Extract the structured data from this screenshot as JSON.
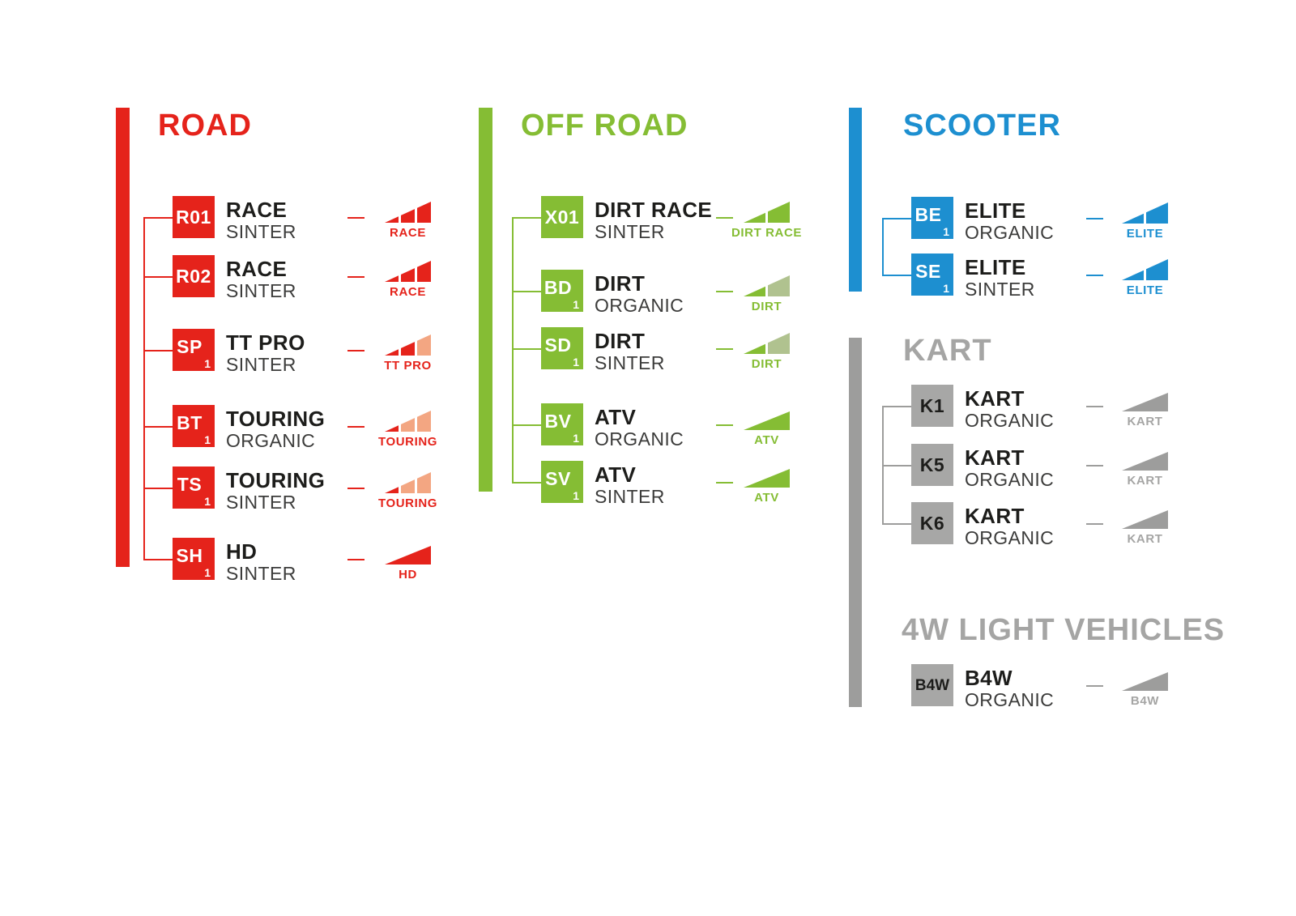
{
  "page": {
    "background": "#ffffff"
  },
  "sections": [
    {
      "id": "road",
      "title": "ROAD",
      "color": "#e5231b",
      "light_color": "#f3a682",
      "badge_text": "#ffffff",
      "items": [
        {
          "code": "R01",
          "sub": "",
          "name": "RACE",
          "material": "SINTER",
          "icon_label": "RACE",
          "segments": [
            "full",
            "full",
            "full"
          ]
        },
        {
          "code": "R02",
          "sub": "",
          "name": "RACE",
          "material": "SINTER",
          "icon_label": "RACE",
          "segments": [
            "full",
            "full",
            "full"
          ]
        },
        {
          "code": "SP",
          "sub": "1",
          "name": "TT PRO",
          "material": "SINTER",
          "icon_label": "TT PRO",
          "segments": [
            "full",
            "full",
            "light"
          ]
        },
        {
          "code": "BT",
          "sub": "1",
          "name": "TOURING",
          "material": "ORGANIC",
          "icon_label": "TOURING",
          "segments": [
            "full",
            "light",
            "light"
          ]
        },
        {
          "code": "TS",
          "sub": "1",
          "name": "TOURING",
          "material": "SINTER",
          "icon_label": "TOURING",
          "segments": [
            "full",
            "light",
            "light"
          ]
        },
        {
          "code": "SH",
          "sub": "1",
          "name": "HD",
          "material": "SINTER",
          "icon_label": "HD",
          "segments": [
            "solid"
          ]
        }
      ]
    },
    {
      "id": "offroad",
      "title": "OFF ROAD",
      "color": "#85bd34",
      "light_color": "#b0c28f",
      "badge_text": "#ffffff",
      "items": [
        {
          "code": "X01",
          "sub": "",
          "name": "DIRT RACE",
          "material": "SINTER",
          "icon_label": "DIRT RACE",
          "segments": [
            "full",
            "full"
          ]
        },
        {
          "code": "BD",
          "sub": "1",
          "name": "DIRT",
          "material": "ORGANIC",
          "icon_label": "DIRT",
          "segments": [
            "full",
            "light"
          ]
        },
        {
          "code": "SD",
          "sub": "1",
          "name": "DIRT",
          "material": "SINTER",
          "icon_label": "DIRT",
          "segments": [
            "full",
            "light"
          ]
        },
        {
          "code": "BV",
          "sub": "1",
          "name": "ATV",
          "material": "ORGANIC",
          "icon_label": "ATV",
          "segments": [
            "solid"
          ]
        },
        {
          "code": "SV",
          "sub": "1",
          "name": "ATV",
          "material": "SINTER",
          "icon_label": "ATV",
          "segments": [
            "solid"
          ]
        }
      ]
    },
    {
      "id": "scooter",
      "title": "SCOOTER",
      "color": "#1d8fd0",
      "light_color": "#8fc6e8",
      "badge_text": "#ffffff",
      "items": [
        {
          "code": "BE",
          "sub": "1",
          "name": "ELITE",
          "material": "ORGANIC",
          "icon_label": "ELITE",
          "segments": [
            "full",
            "full"
          ]
        },
        {
          "code": "SE",
          "sub": "1",
          "name": "ELITE",
          "material": "SINTER",
          "icon_label": "ELITE",
          "segments": [
            "full",
            "full"
          ]
        }
      ]
    },
    {
      "id": "kart",
      "title": "KART",
      "color": "#9d9d9c",
      "light_color": "#c6c6c5",
      "badge_color": "#a7a7a6",
      "badge_text": "#1d1d1b",
      "title_color": "#a5a5a4",
      "items": [
        {
          "code": "K1",
          "sub": "",
          "name": "KART",
          "material": "ORGANIC",
          "icon_label": "KART",
          "segments": [
            "solid"
          ]
        },
        {
          "code": "K5",
          "sub": "",
          "name": "KART",
          "material": "ORGANIC",
          "icon_label": "KART",
          "segments": [
            "solid"
          ]
        },
        {
          "code": "K6",
          "sub": "",
          "name": "KART",
          "material": "ORGANIC",
          "icon_label": "KART",
          "segments": [
            "solid"
          ]
        }
      ]
    },
    {
      "id": "lv4w",
      "title": "4W LIGHT VEHICLES",
      "color": "#9d9d9c",
      "light_color": "#c6c6c5",
      "badge_color": "#a7a7a6",
      "badge_text": "#1d1d1b",
      "title_color": "#a5a5a4",
      "items": [
        {
          "code": "B4W",
          "sub": "",
          "name": "B4W",
          "material": "ORGANIC",
          "icon_label": "B4W",
          "segments": [
            "solid"
          ]
        }
      ]
    }
  ]
}
